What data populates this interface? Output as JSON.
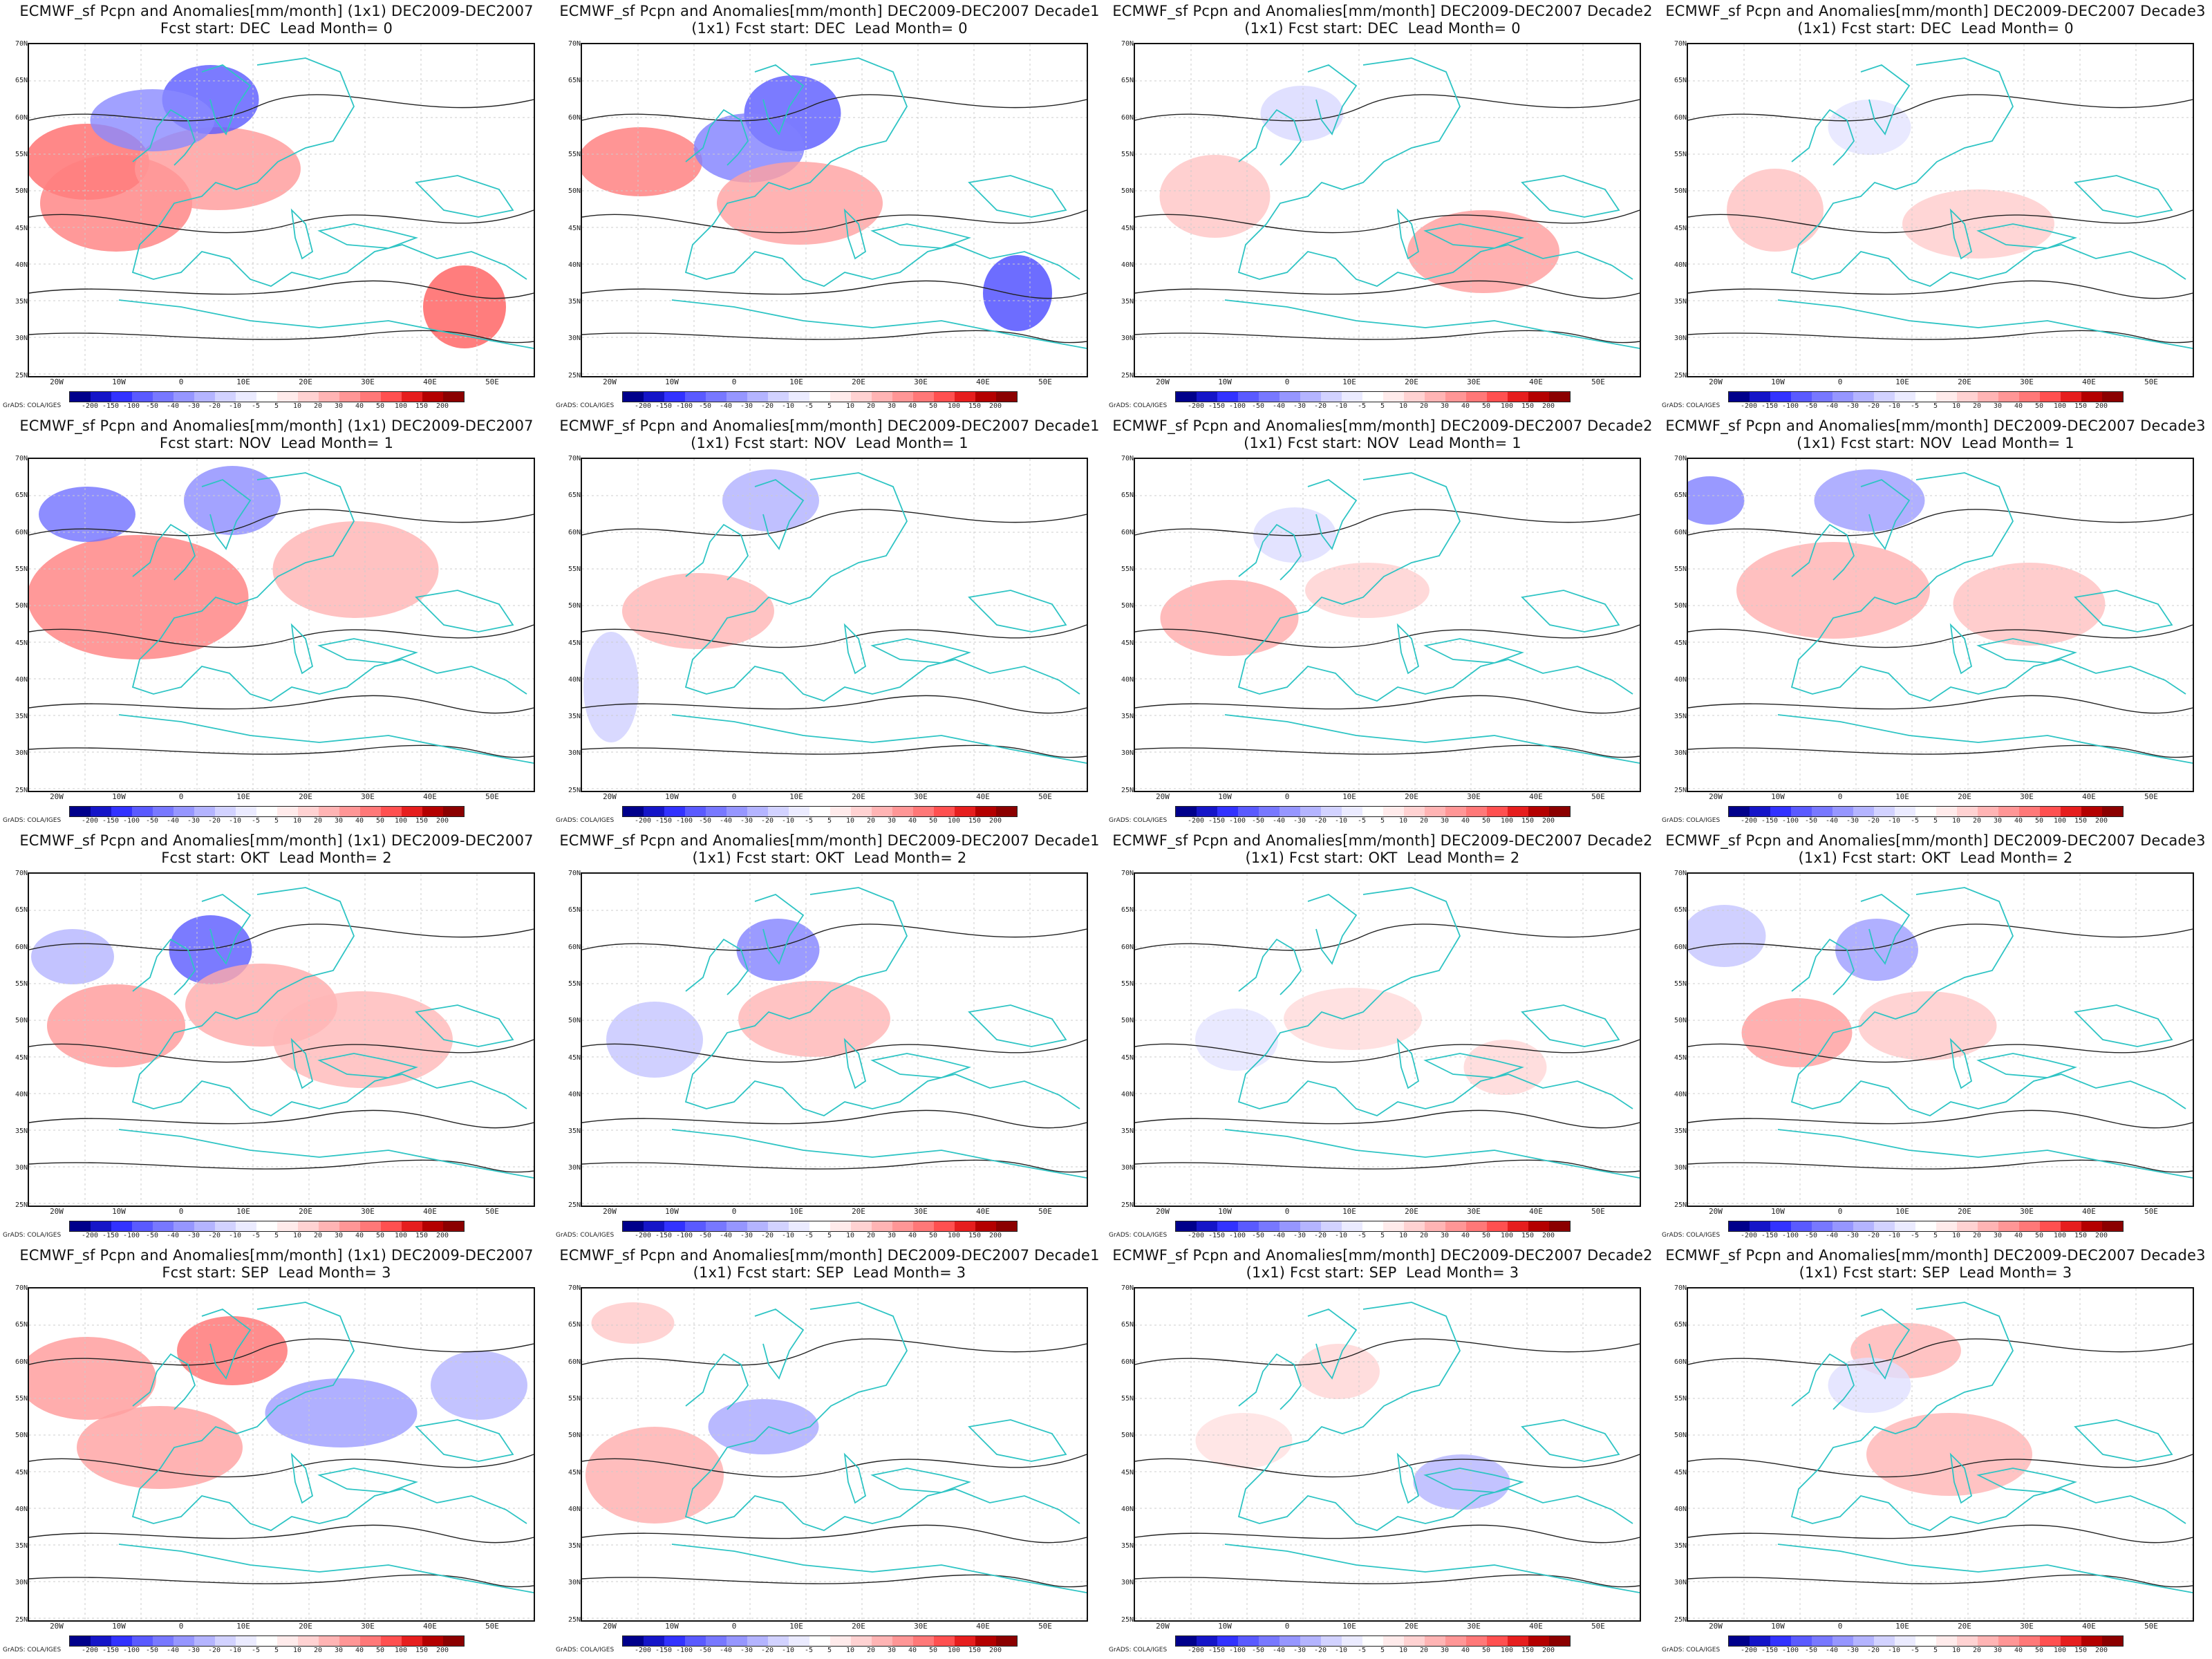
{
  "panels": [
    {
      "title1": "ECMWF_sf Pcpn and Anomalies[mm/month] (1x1) DEC2009-DEC2007",
      "title2": "Fcst start: DEC  Lead Month= 0"
    },
    {
      "title1": "ECMWF_sf Pcpn and Anomalies[mm/month] DEC2009-DEC2007 Decade1",
      "title2": "(1x1) Fcst start: DEC  Lead Month= 0"
    },
    {
      "title1": "ECMWF_sf Pcpn and Anomalies[mm/month] DEC2009-DEC2007 Decade2",
      "title2": "(1x1) Fcst start: DEC  Lead Month= 0"
    },
    {
      "title1": "ECMWF_sf Pcpn and Anomalies[mm/month] DEC2009-DEC2007 Decade3",
      "title2": "(1x1) Fcst start: DEC  Lead Month= 0"
    },
    {
      "title1": "ECMWF_sf Pcpn and Anomalies[mm/month] (1x1) DEC2009-DEC2007",
      "title2": "Fcst start: NOV  Lead Month= 1"
    },
    {
      "title1": "ECMWF_sf Pcpn and Anomalies[mm/month] DEC2009-DEC2007 Decade1",
      "title2": "(1x1) Fcst start: NOV  Lead Month= 1"
    },
    {
      "title1": "ECMWF_sf Pcpn and Anomalies[mm/month] DEC2009-DEC2007 Decade2",
      "title2": "(1x1) Fcst start: NOV  Lead Month= 1"
    },
    {
      "title1": "ECMWF_sf Pcpn and Anomalies[mm/month] DEC2009-DEC2007 Decade3",
      "title2": "(1x1) Fcst start: NOV  Lead Month= 1"
    },
    {
      "title1": "ECMWF_sf Pcpn and Anomalies[mm/month] (1x1) DEC2009-DEC2007",
      "title2": "Fcst start: OKT  Lead Month= 2"
    },
    {
      "title1": "ECMWF_sf Pcpn and Anomalies[mm/month] DEC2009-DEC2007 Decade1",
      "title2": "(1x1) Fcst start: OKT  Lead Month= 2"
    },
    {
      "title1": "ECMWF_sf Pcpn and Anomalies[mm/month] DEC2009-DEC2007 Decade2",
      "title2": "(1x1) Fcst start: OKT  Lead Month= 2"
    },
    {
      "title1": "ECMWF_sf Pcpn and Anomalies[mm/month] DEC2009-DEC2007 Decade3",
      "title2": "(1x1) Fcst start: OKT  Lead Month= 2"
    },
    {
      "title1": "ECMWF_sf Pcpn and Anomalies[mm/month] (1x1) DEC2009-DEC2007",
      "title2": "Fcst start: SEP  Lead Month= 3"
    },
    {
      "title1": "ECMWF_sf Pcpn and Anomalies[mm/month] DEC2009-DEC2007 Decade1",
      "title2": "(1x1) Fcst start: SEP  Lead Month= 3"
    },
    {
      "title1": "ECMWF_sf Pcpn and Anomalies[mm/month] DEC2009-DEC2007 Decade2",
      "title2": "(1x1) Fcst start: SEP  Lead Month= 3"
    },
    {
      "title1": "ECMWF_sf Pcpn and Anomalies[mm/month] DEC2009-DEC2007 Decade3",
      "title2": "(1x1) Fcst start: SEP  Lead Month= 3"
    }
  ],
  "lat_labels": [
    "70N",
    "65N",
    "60N",
    "55N",
    "50N",
    "45N",
    "40N",
    "35N",
    "30N",
    "25N"
  ],
  "lon_labels": [
    "20W",
    "10W",
    "0",
    "10E",
    "20E",
    "30E",
    "40E",
    "50E"
  ],
  "colorbar": {
    "labels": [
      "-200",
      "-150",
      "-100",
      "-50",
      "-40",
      "-30",
      "-20",
      "-10",
      "-5",
      "5",
      "10",
      "20",
      "30",
      "40",
      "50",
      "100",
      "150",
      "200"
    ],
    "colors": [
      "#00008b",
      "#1515c8",
      "#3232ff",
      "#5a5aff",
      "#7878ff",
      "#9696ff",
      "#b4b4ff",
      "#d2d2ff",
      "#ebebff",
      "#ffffff",
      "#ffebeb",
      "#ffd2d2",
      "#ffb4b4",
      "#ff9696",
      "#ff7878",
      "#ff5050",
      "#e61e1e",
      "#b40000",
      "#8b0000"
    ]
  },
  "credit": "GrADS: COLA/IGES",
  "colors": {
    "coast": "#2ec4c4",
    "contour": "#222222"
  }
}
